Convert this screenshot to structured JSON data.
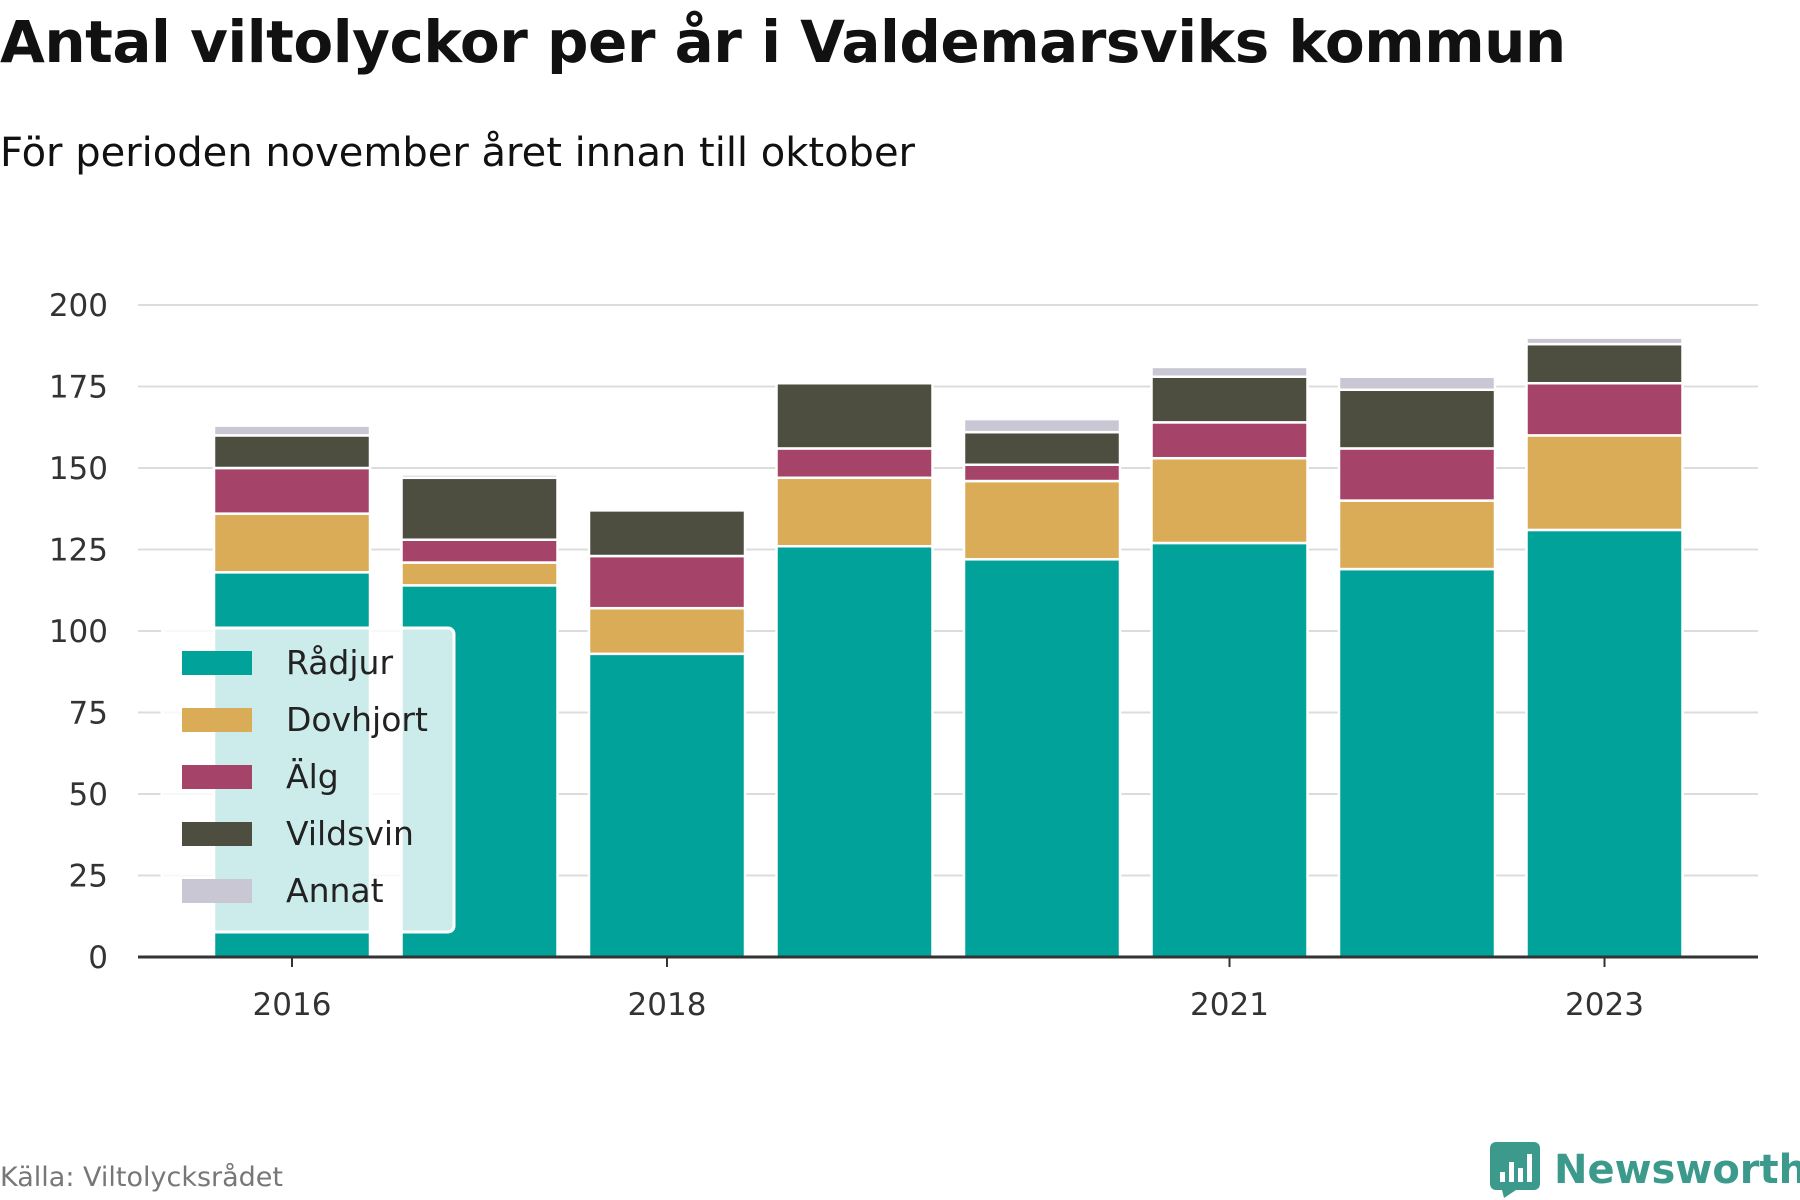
{
  "title": "Antal viltolyckor per år i Valdemarsviks kommun",
  "subtitle": "För perioden november året innan till oktober",
  "source": "Källa: Viltolycksrådet",
  "brand": {
    "name": "Newsworthy",
    "icon": "newsworthy-logo-icon",
    "color": "#3b9a8c"
  },
  "chart_data": {
    "type": "bar",
    "stacked": true,
    "categories": [
      "2016",
      "2017",
      "2018",
      "2019",
      "2020",
      "2021",
      "2022",
      "2023"
    ],
    "x_tick_labels": [
      "2016",
      "2018",
      "2021",
      "2023"
    ],
    "y_ticks": [
      0,
      25,
      50,
      75,
      100,
      125,
      150,
      175,
      200
    ],
    "ylim": [
      0,
      200
    ],
    "grid": true,
    "legend_position": "bottom-left",
    "series": [
      {
        "name": "Rådjur",
        "color": "#00a29a",
        "values": [
          118,
          114,
          93,
          126,
          122,
          127,
          119,
          131
        ]
      },
      {
        "name": "Dovhjort",
        "color": "#dbac57",
        "values": [
          18,
          7,
          14,
          21,
          24,
          26,
          21,
          29
        ]
      },
      {
        "name": "Älg",
        "color": "#a64369",
        "values": [
          14,
          7,
          16,
          9,
          5,
          11,
          16,
          16
        ]
      },
      {
        "name": "Vildsvin",
        "color": "#4d4e3f",
        "values": [
          10,
          19,
          14,
          20,
          10,
          14,
          18,
          12
        ]
      },
      {
        "name": "Annat",
        "color": "#c8c7d3",
        "values": [
          3,
          1,
          0,
          0,
          4,
          3,
          4,
          2
        ]
      }
    ]
  }
}
